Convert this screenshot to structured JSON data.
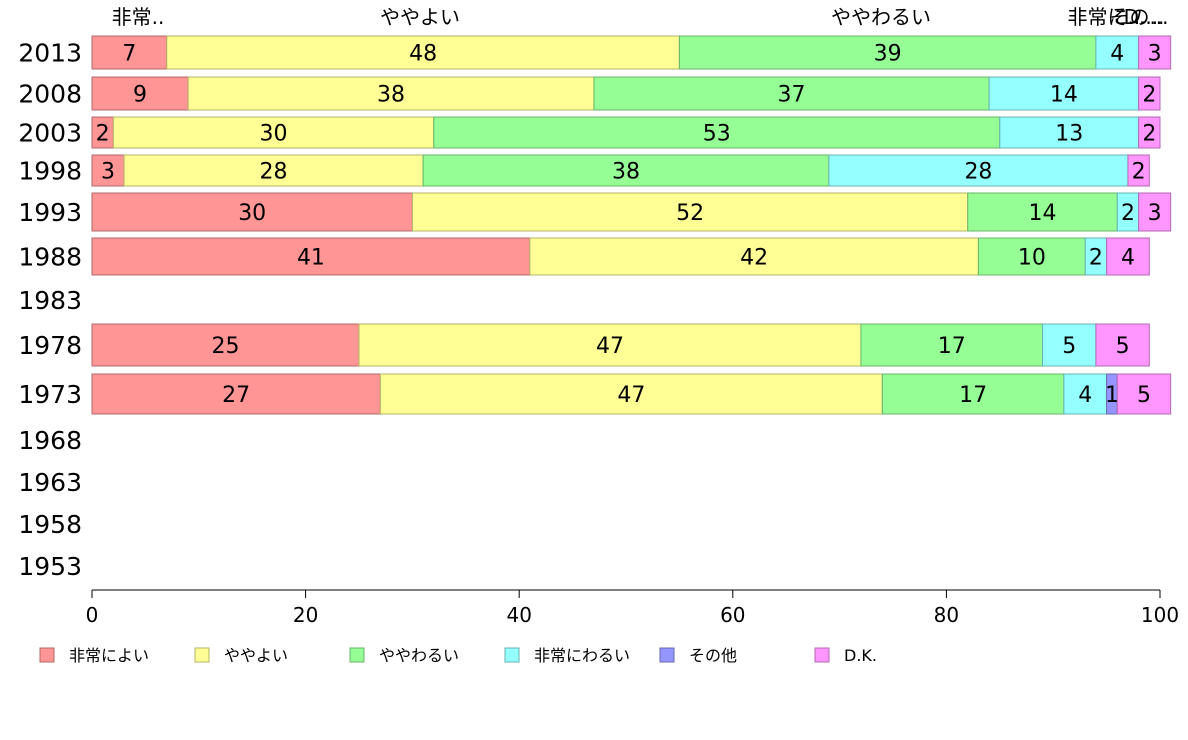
{
  "chart_data": {
    "type": "bar",
    "orientation": "horizontal",
    "stacked": true,
    "categories": [
      "2013",
      "2008",
      "2003",
      "1998",
      "1993",
      "1988",
      "1983",
      "1978",
      "1973",
      "1968",
      "1963",
      "1958",
      "1953"
    ],
    "series": [
      {
        "name": "非常によい",
        "color": "#ff9595",
        "values": [
          7,
          9,
          2,
          3,
          30,
          41,
          null,
          25,
          27,
          null,
          null,
          null,
          null
        ]
      },
      {
        "name": "ややよい",
        "color": "#ffff95",
        "values": [
          48,
          38,
          30,
          28,
          52,
          42,
          null,
          47,
          47,
          null,
          null,
          null,
          null
        ]
      },
      {
        "name": "ややわるい",
        "color": "#95ff95",
        "values": [
          39,
          37,
          53,
          38,
          14,
          10,
          null,
          17,
          17,
          null,
          null,
          null,
          null
        ]
      },
      {
        "name": "非常にわるい",
        "color": "#95ffff",
        "values": [
          4,
          14,
          13,
          28,
          2,
          2,
          null,
          5,
          4,
          null,
          null,
          null,
          null
        ]
      },
      {
        "name": "その他",
        "color": "#9595ff",
        "values": [
          0,
          0,
          0,
          0,
          0,
          0,
          null,
          0,
          1,
          null,
          null,
          null,
          null
        ]
      },
      {
        "name": "D.K.",
        "color": "#ff95ff",
        "values": [
          3,
          2,
          2,
          2,
          3,
          4,
          null,
          5,
          5,
          null,
          null,
          null,
          null
        ]
      }
    ],
    "top_labels": [
      "非常..",
      "ややよい",
      "ややわるい",
      "非常に...",
      "その...",
      "D...."
    ],
    "xlim": [
      0,
      100
    ],
    "xticks": [
      0,
      20,
      40,
      60,
      80,
      100
    ],
    "grid": false,
    "legend_position": "bottom-left",
    "title": "",
    "xlabel": "",
    "ylabel": ""
  }
}
